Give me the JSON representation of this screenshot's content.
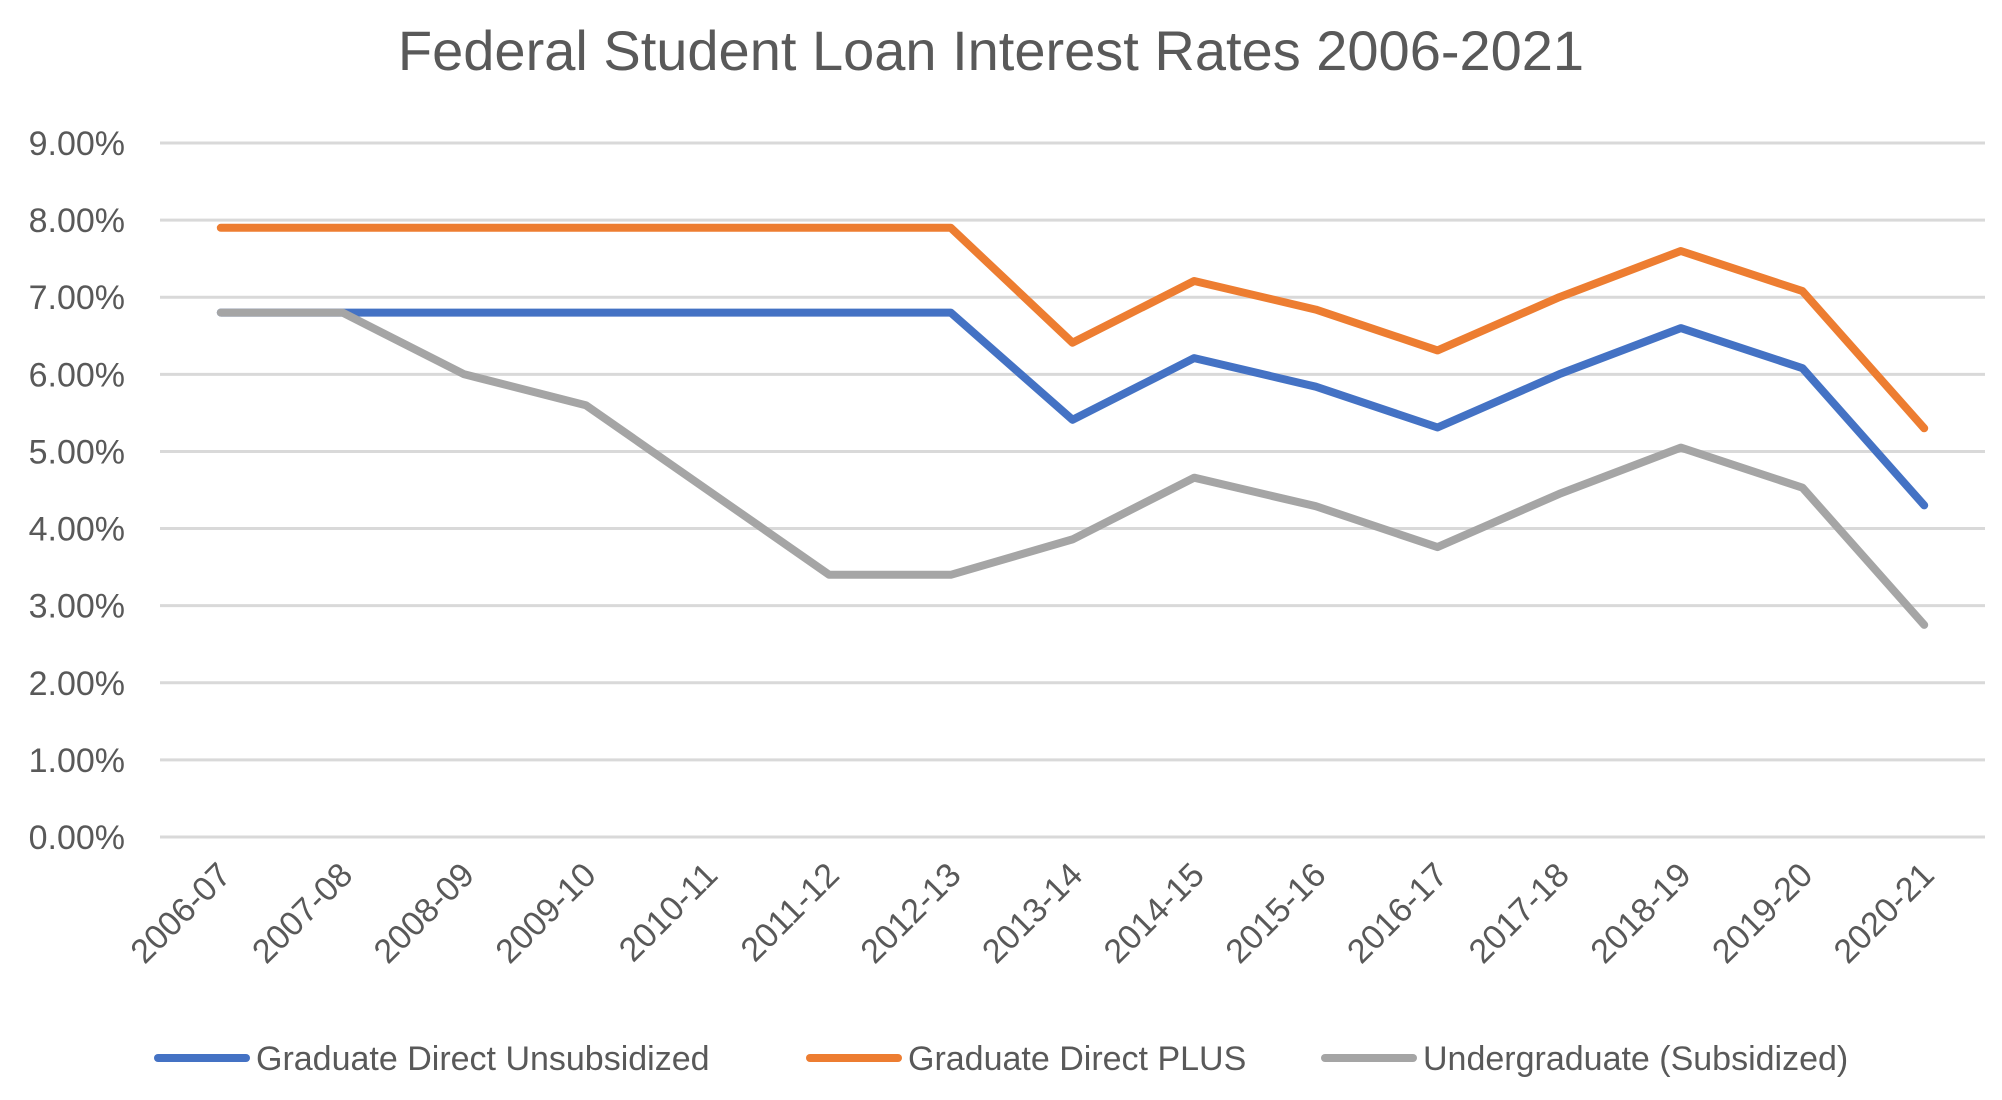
{
  "chart_data": {
    "type": "line",
    "title": "Federal Student Loan Interest Rates 2006-2021",
    "xlabel": "",
    "ylabel": "",
    "ylim": [
      0,
      9
    ],
    "y_ticks": [
      0,
      1,
      2,
      3,
      4,
      5,
      6,
      7,
      8,
      9
    ],
    "y_tick_labels": [
      "0.00%",
      "1.00%",
      "2.00%",
      "3.00%",
      "4.00%",
      "5.00%",
      "6.00%",
      "7.00%",
      "8.00%",
      "9.00%"
    ],
    "grid": true,
    "legend_position": "bottom",
    "categories": [
      "2006-07",
      "2007-08",
      "2008-09",
      "2009-10",
      "2010-11",
      "2011-12",
      "2012-13",
      "2013-14",
      "2014-15",
      "2015-16",
      "2016-17",
      "2017-18",
      "2018-19",
      "2019-20",
      "2020-21"
    ],
    "series": [
      {
        "name": "Graduate Direct Unsubsidized",
        "color": "#4472c4",
        "values": [
          6.8,
          6.8,
          6.8,
          6.8,
          6.8,
          6.8,
          6.8,
          5.41,
          6.21,
          5.84,
          5.31,
          6.0,
          6.6,
          6.08,
          4.3
        ]
      },
      {
        "name": "Graduate Direct PLUS",
        "color": "#ed7d31",
        "values": [
          7.9,
          7.9,
          7.9,
          7.9,
          7.9,
          7.9,
          7.9,
          6.41,
          7.21,
          6.84,
          6.31,
          7.0,
          7.6,
          7.08,
          5.3
        ]
      },
      {
        "name": "Undergraduate (Subsidized)",
        "color": "#a5a5a5",
        "values": [
          6.8,
          6.8,
          6.0,
          5.6,
          4.5,
          3.4,
          3.4,
          3.86,
          4.66,
          4.29,
          3.76,
          4.45,
          5.05,
          4.53,
          2.75
        ]
      }
    ]
  }
}
